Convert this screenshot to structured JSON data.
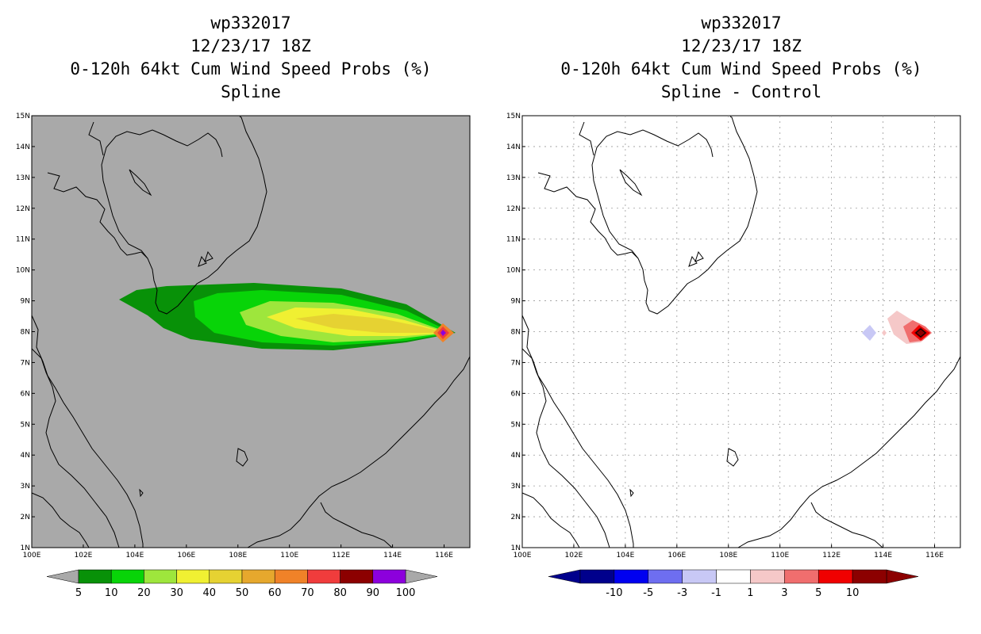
{
  "left_panel": {
    "title_lines": [
      "wp332017",
      "12/23/17 18Z",
      "0-120h 64kt Cum Wind Speed Probs (%)",
      "Spline"
    ],
    "background": "#a9a9a9",
    "colorbar": {
      "colors": [
        "#089108",
        "#08d408",
        "#9ee63c",
        "#f0f032",
        "#e6d232",
        "#e6a82d",
        "#f08228",
        "#f03c3c",
        "#8c0000",
        "#8c00dc"
      ],
      "labels": [
        "5",
        "10",
        "20",
        "30",
        "40",
        "50",
        "60",
        "70",
        "80",
        "90",
        "100"
      ]
    }
  },
  "right_panel": {
    "title_lines": [
      "wp332017",
      "12/23/17 18Z",
      "0-120h 64kt Cum Wind Speed Probs (%)",
      "Spline - Control"
    ],
    "background": "#ffffff",
    "colorbar": {
      "colors": [
        "#00008c",
        "#0000f0",
        "#6e6ef0",
        "#c8c8f5",
        "#ffffff",
        "#f5c8c8",
        "#f06e6e",
        "#f00000",
        "#8c0000"
      ],
      "labels": [
        "-10",
        "-5",
        "-3",
        "-1",
        "1",
        "3",
        "5",
        "10"
      ]
    }
  },
  "axes": {
    "lat_labels": [
      "1N",
      "2N",
      "3N",
      "4N",
      "5N",
      "6N",
      "7N",
      "8N",
      "9N",
      "10N",
      "11N",
      "12N",
      "13N",
      "14N",
      "15N"
    ],
    "lon_labels": [
      "100E",
      "102E",
      "104E",
      "106E",
      "108E",
      "110E",
      "112E",
      "114E",
      "116E"
    ],
    "lat_range": [
      1,
      15
    ],
    "lon_range": [
      100,
      117
    ]
  }
}
